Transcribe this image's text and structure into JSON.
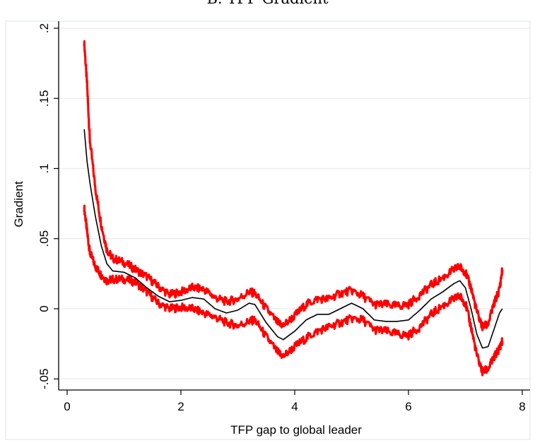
{
  "chart_data": {
    "type": "line",
    "title": "B. TFP Gradient",
    "xlabel": "TFP gap to global leader",
    "ylabel": "Gradient",
    "xlim": [
      0,
      8
    ],
    "ylim": [
      -0.05,
      0.2
    ],
    "x_ticks": [
      0,
      2,
      4,
      6,
      8
    ],
    "x_tick_labels": [
      "0",
      "2",
      "4",
      "6",
      "8"
    ],
    "y_ticks": [
      -0.05,
      0,
      0.05,
      0.1,
      0.15,
      0.2
    ],
    "y_tick_labels": [
      "-.05",
      "0",
      ".05",
      ".1",
      ".15",
      ".2"
    ],
    "grid": "horizontal",
    "colors": {
      "estimate": "#000000",
      "bands": "#ff0000",
      "grid": "#ececec",
      "axis": "#000000"
    },
    "x": [
      0.3,
      0.35,
      0.4,
      0.5,
      0.6,
      0.7,
      0.8,
      1.0,
      1.2,
      1.4,
      1.6,
      1.8,
      2.0,
      2.2,
      2.4,
      2.6,
      2.8,
      3.0,
      3.2,
      3.3,
      3.5,
      3.7,
      3.8,
      4.0,
      4.2,
      4.4,
      4.6,
      4.8,
      5.0,
      5.2,
      5.4,
      5.6,
      5.8,
      6.0,
      6.2,
      6.4,
      6.6,
      6.8,
      6.9,
      7.0,
      7.1,
      7.2,
      7.3,
      7.4,
      7.5,
      7.6,
      7.65
    ],
    "series": [
      {
        "role": "estimate",
        "values": [
          0.128,
          0.105,
          0.09,
          0.065,
          0.045,
          0.032,
          0.027,
          0.026,
          0.022,
          0.015,
          0.009,
          0.005,
          0.006,
          0.008,
          0.007,
          0.0,
          -0.003,
          -0.001,
          0.004,
          0.003,
          -0.01,
          -0.02,
          -0.022,
          -0.016,
          -0.008,
          -0.004,
          -0.004,
          0.0,
          0.004,
          0.0,
          -0.008,
          -0.009,
          -0.009,
          -0.008,
          -0.001,
          0.007,
          0.012,
          0.018,
          0.02,
          0.015,
          0.0,
          -0.018,
          -0.028,
          -0.027,
          -0.015,
          -0.003,
          0.0
        ]
      },
      {
        "role": "upper-band",
        "values": [
          0.19,
          0.16,
          0.12,
          0.085,
          0.06,
          0.042,
          0.036,
          0.033,
          0.028,
          0.023,
          0.016,
          0.01,
          0.012,
          0.015,
          0.014,
          0.008,
          0.005,
          0.007,
          0.012,
          0.011,
          0.0,
          -0.01,
          -0.012,
          -0.005,
          0.003,
          0.007,
          0.007,
          0.011,
          0.013,
          0.009,
          0.003,
          0.003,
          0.002,
          0.003,
          0.01,
          0.017,
          0.022,
          0.028,
          0.03,
          0.026,
          0.015,
          -0.002,
          -0.013,
          -0.011,
          0.003,
          0.014,
          0.028
        ]
      },
      {
        "role": "lower-band",
        "values": [
          0.072,
          0.055,
          0.04,
          0.03,
          0.024,
          0.02,
          0.021,
          0.021,
          0.019,
          0.012,
          0.004,
          0.0,
          0.001,
          0.0,
          -0.003,
          -0.006,
          -0.01,
          -0.012,
          -0.009,
          -0.008,
          -0.02,
          -0.031,
          -0.034,
          -0.027,
          -0.021,
          -0.016,
          -0.013,
          -0.01,
          -0.007,
          -0.008,
          -0.015,
          -0.016,
          -0.018,
          -0.019,
          -0.013,
          -0.004,
          0.002,
          0.007,
          0.009,
          0.004,
          -0.013,
          -0.033,
          -0.045,
          -0.043,
          -0.035,
          -0.028,
          -0.023
        ]
      }
    ]
  }
}
